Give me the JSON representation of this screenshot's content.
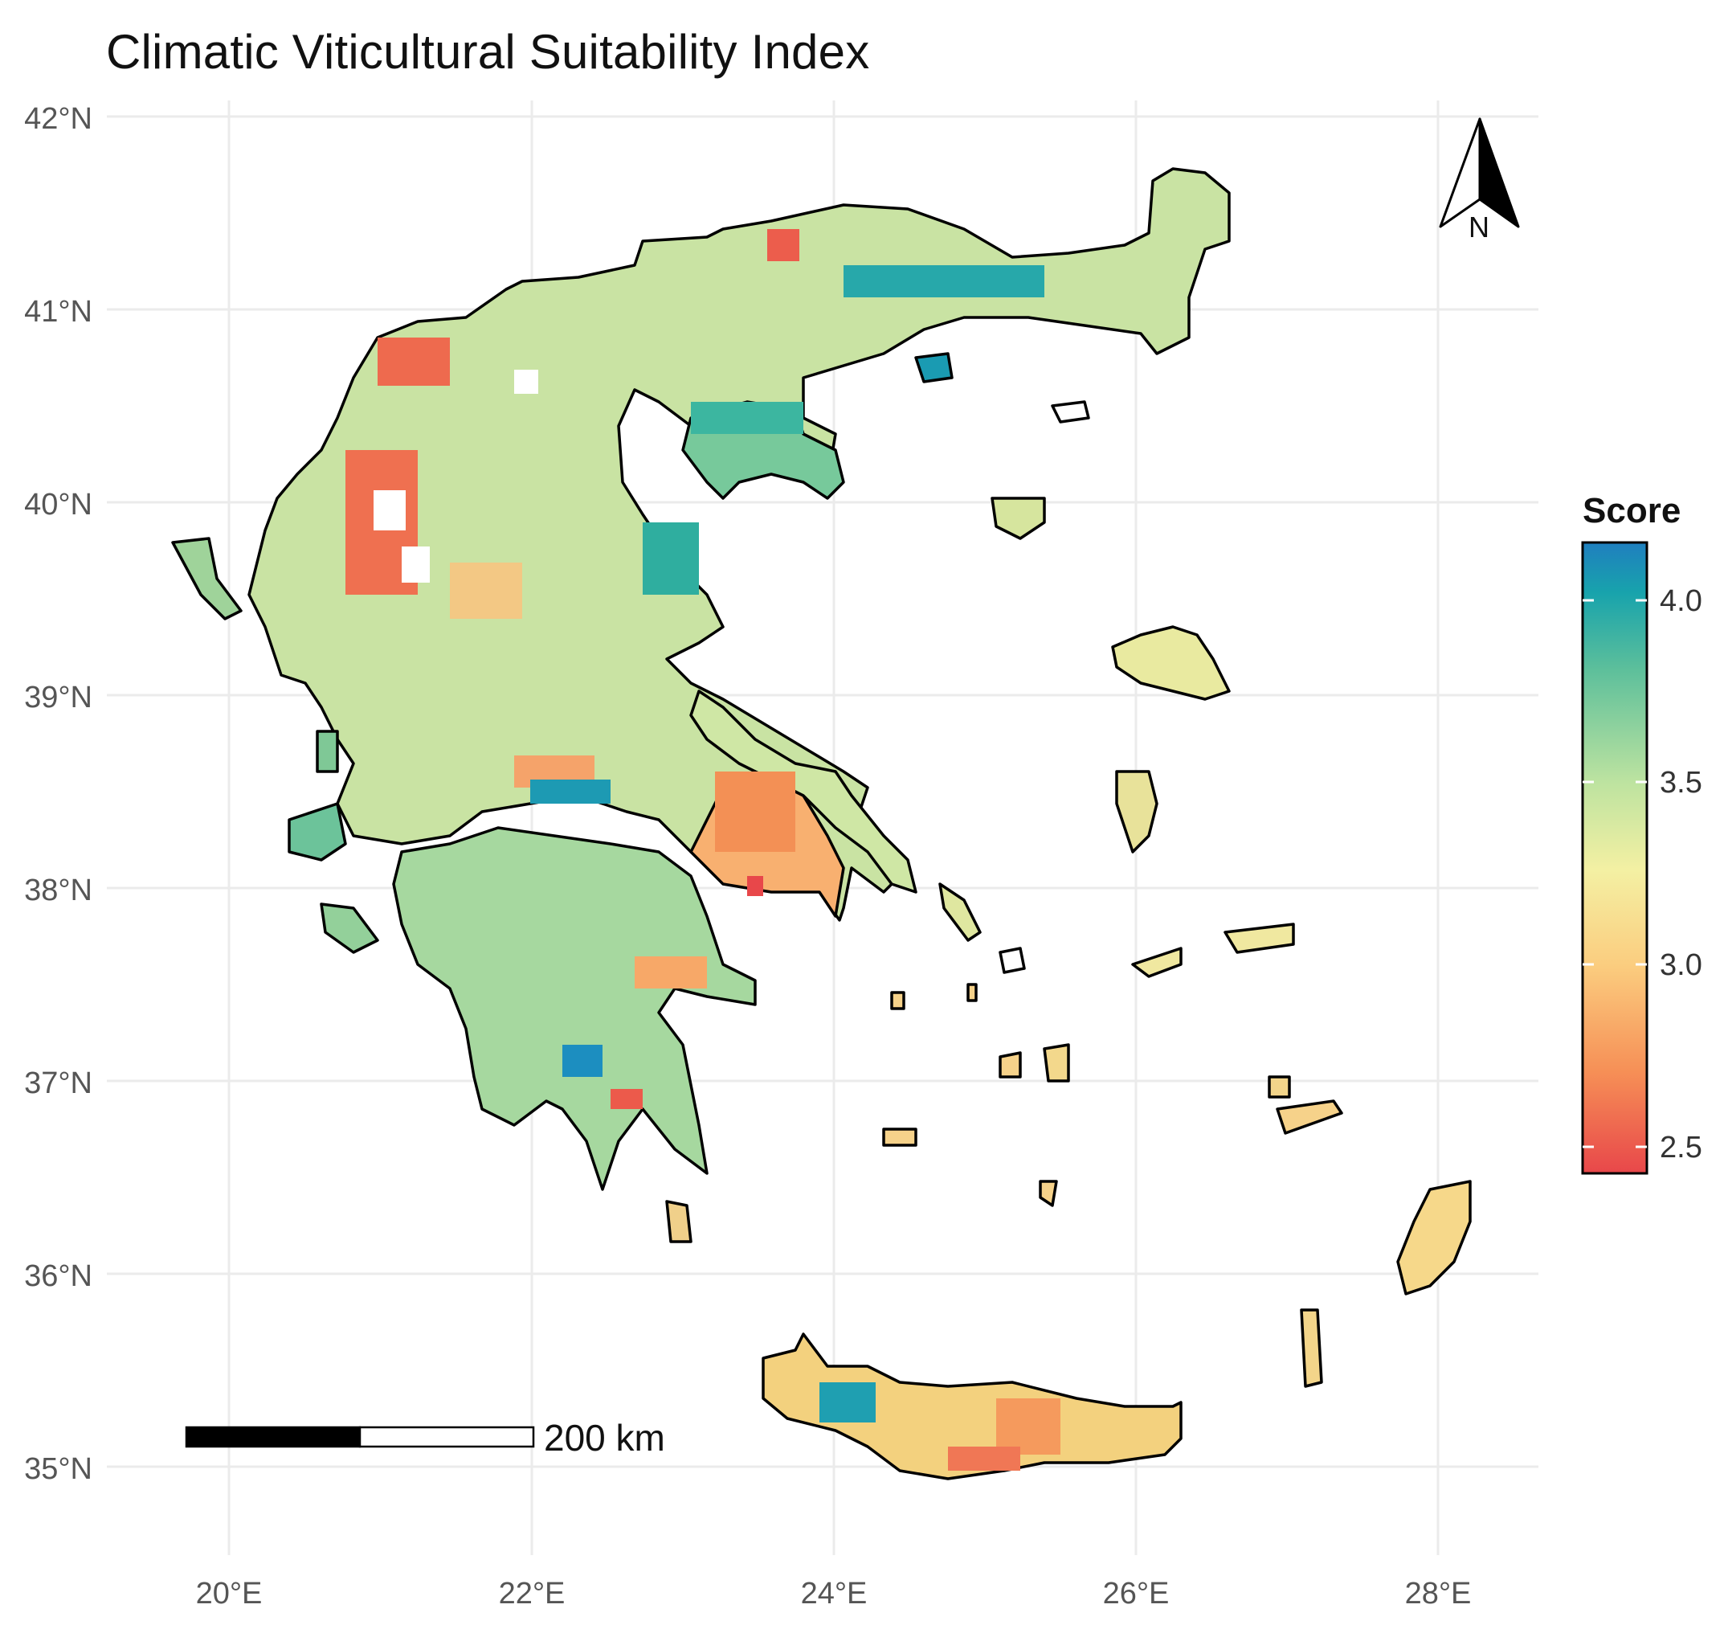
{
  "title": "Climatic Viticultural Suitability Index",
  "axes": {
    "lat_ticks": [
      "42°N",
      "41°N",
      "40°N",
      "39°N",
      "38°N",
      "37°N",
      "36°N",
      "35°N"
    ],
    "lon_ticks": [
      "20°E",
      "22°E",
      "24°E",
      "26°E",
      "28°E"
    ]
  },
  "legend": {
    "title": "Score",
    "tick_labels": [
      "4.0",
      "3.5",
      "3.0",
      "2.5"
    ],
    "min": 2.4,
    "max": 4.17,
    "palette": [
      "#e8474a",
      "#f68f56",
      "#fbcd7f",
      "#f4f0a3",
      "#bde3a0",
      "#5cbf9b",
      "#18a3ac",
      "#1f7fbf"
    ]
  },
  "scale_bar": {
    "label": "200 km"
  },
  "north_arrow": {
    "label": "N"
  },
  "colors": {
    "grid": "#ebebeb",
    "coast": "#000000",
    "background": "#ffffff"
  }
}
